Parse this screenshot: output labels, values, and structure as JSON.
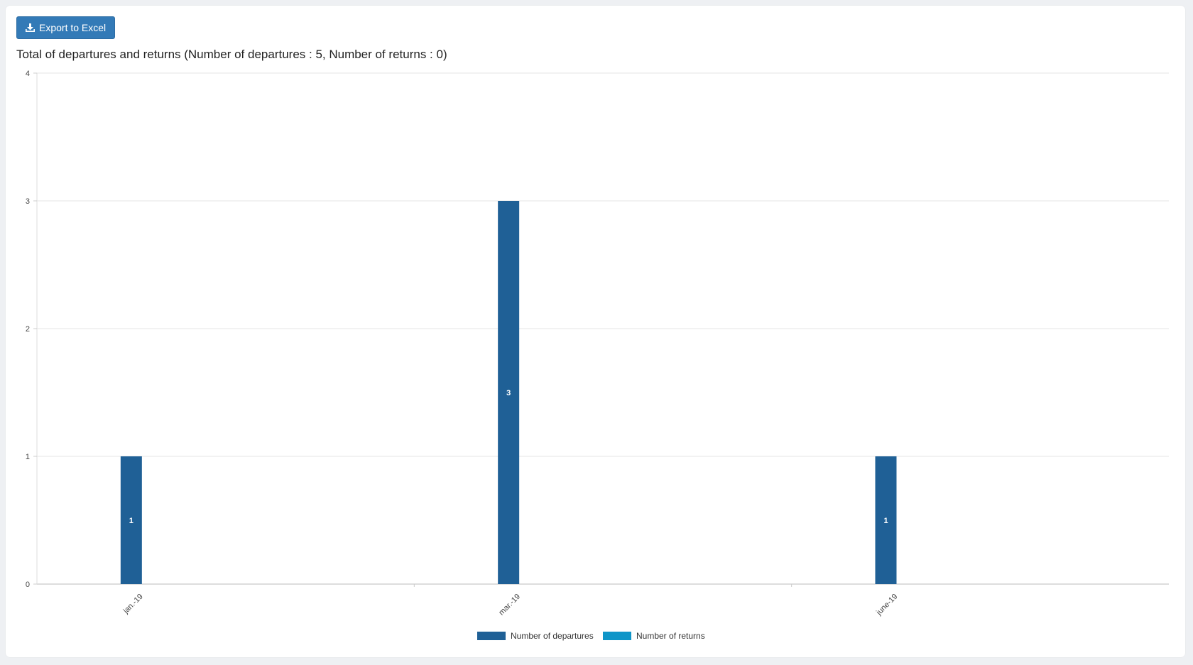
{
  "toolbar": {
    "export_label": "Export to Excel",
    "export_icon": "download-icon"
  },
  "chart_data": {
    "type": "bar",
    "title": "Total of departures and returns (Number of departures : 5, Number of returns : 0)",
    "categories": [
      "jan.-19",
      "mar.-19",
      "june-19"
    ],
    "series": [
      {
        "name": "Number of  departures",
        "values": [
          1,
          3,
          1
        ],
        "color": "#1f6096"
      },
      {
        "name": "Number of returns",
        "values": [
          0,
          0,
          0
        ],
        "color": "#0f95c8"
      }
    ],
    "ylim": [
      0,
      4
    ],
    "yticks": [
      0,
      1,
      2,
      3,
      4
    ],
    "grid": true,
    "legend_position": "bottom-center",
    "data_labels": true
  }
}
